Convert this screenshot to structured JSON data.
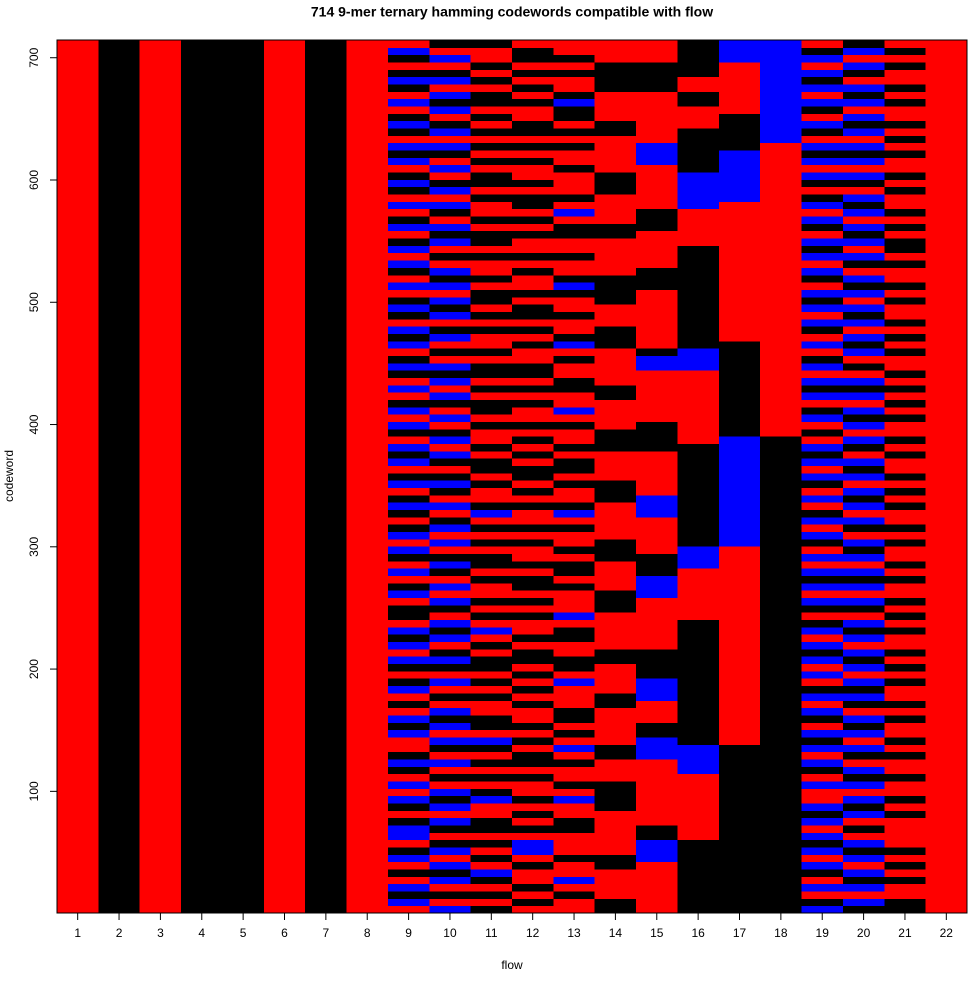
{
  "chart_data": {
    "type": "heatmap",
    "title": "714 9-mer ternary hamming codewords compatible with flow",
    "x_label": "flow",
    "y_label": "codeword",
    "categories": [
      1,
      2,
      3,
      4,
      5,
      6,
      7,
      8,
      9,
      10,
      11,
      12,
      13,
      14,
      15,
      16,
      17,
      18,
      19,
      20,
      21,
      22
    ],
    "ylim": [
      0.5,
      714.5
    ],
    "yticks": [
      100,
      200,
      300,
      400,
      500,
      600,
      700
    ],
    "colors": [
      "#ff0000",
      "#000000",
      "#0000ff"
    ],
    "columns": [
      "00000000000000000000000000000000000000000000000000000000000000000000000000000000000000000000000000000000000000000000000",
      "11111111111111111111111111111111111111111111111111111111111111111111111111111111111111111111111111111111111111111111111",
      "00000000000000000000000000000000000000000000000000000000000000000000000000000000000000000000000000000000000000000000000",
      "11111111111111111111111111111111111111111111111111111111111111111111111111111111111111111111111111111111111111111111111",
      "11111111111111111111111111111111111111111111111111111111111111111111111111111111111111111111111111111111111111111111111",
      "00000000000000000000000000000000000000000000000000000000000000000000000000000000000000000000000000000000000000000000000",
      "11111111111111111111111111111111111111111111111111111111111111111111111111111111111111111111111111111111111111111111111",
      "00000000000000000000000000000000000000000000000000000000000000000000000000000000000000000000000000000000000000000000000",
      "02120102102210120201210021201021012021201102102012021012102102120120210201210212012102012021021020121021201210201210120",
      "20102120210120212010201202120102012102120120201210202102012101202102012021201021021202120102120120210201202102120210201",
      "10101201010110021010101201100101011010201010010110101021001011010010110101101001010110100101101001011010101010110101001",
      "01010010220101010010110101001010101101001010110100101001010110101010010101100101011010010100101011010010101100101010110",
      "00102001000110020100102010110002011001102000101101001021001011010010200110010210010012100100110201000100101011210010100",
      "11000011000000111100011000001100001100000111000011100000111000011100001100000111000111100000110000111000001100001111000",
      "00000002221100000000022211000222111100000002221110000022200000011110000000221000000001110000011100000022200000001111000",
      "11111111110000000002222111111111111111110000000222111111111111110000000000222111111111111110000022222111111000110011111",
      "11111111111111111111111000000000000000000000000000222222222222222111111111111100000000000000000002222222111110000000222",
      "11111111111111111111111111111111111111111111111111111111111111111000000000000000000000000000000000000000022222222222222",
      "21020120212021200201202120120210202120210120212020120210201202120102102120210201202120120212012021012021201201202120210",
      "12021202120102120212012021201212021202120120212021201202120212012021202120102120212021201202120212012021202120212012021",
      "11001010100001010010010100101001010100101010010100101001010100101001010101001010100101001011010100101001010100101001010",
      "00000000000000000000000000000000000000000000000000000000000000000000000000000000000000000000000000000000000000000000000"
    ]
  }
}
